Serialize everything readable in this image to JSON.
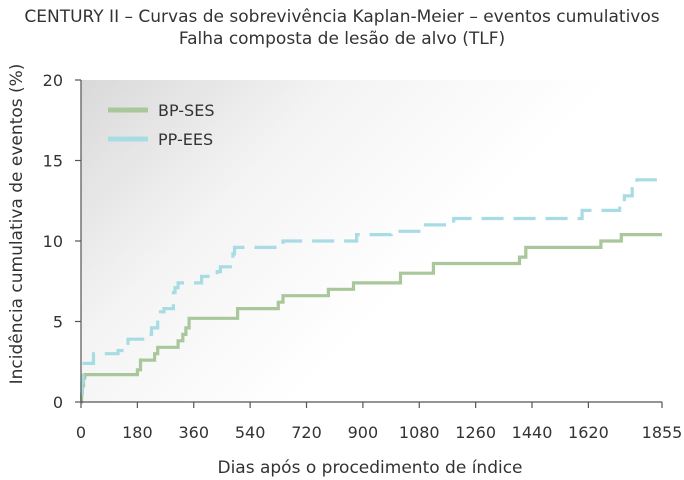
{
  "chart_data": {
    "type": "line",
    "title": "CENTURY II – Curvas de sobrevivência Kaplan-Meier – eventos cumulativos",
    "subtitle": "Falha composta de lesão de alvo (TLF)",
    "xlabel": "Dias após o procedimento de índice",
    "ylabel": "Incidência cumulativa de eventos (%)",
    "xlim": [
      0,
      1855
    ],
    "ylim": [
      0,
      20
    ],
    "x_ticks": [
      0,
      180,
      360,
      540,
      720,
      900,
      1080,
      1260,
      1440,
      1620,
      1855
    ],
    "y_ticks": [
      0,
      5,
      10,
      15,
      20
    ],
    "legend_position": "top-left",
    "grid": false,
    "series": [
      {
        "name": "BP-SES",
        "color": "#a9c79a",
        "style": "solid",
        "steps": [
          [
            0,
            0
          ],
          [
            2,
            0.5
          ],
          [
            4,
            1.0
          ],
          [
            8,
            1.5
          ],
          [
            12,
            1.7
          ],
          [
            180,
            2.0
          ],
          [
            190,
            2.6
          ],
          [
            235,
            3.0
          ],
          [
            245,
            3.4
          ],
          [
            310,
            3.8
          ],
          [
            325,
            4.2
          ],
          [
            335,
            4.6
          ],
          [
            345,
            5.2
          ],
          [
            500,
            5.8
          ],
          [
            630,
            6.2
          ],
          [
            645,
            6.6
          ],
          [
            790,
            7.0
          ],
          [
            870,
            7.4
          ],
          [
            1020,
            8.0
          ],
          [
            1125,
            8.6
          ],
          [
            1400,
            9.0
          ],
          [
            1420,
            9.6
          ],
          [
            1660,
            10.0
          ],
          [
            1725,
            10.4
          ],
          [
            1855,
            10.4
          ]
        ]
      },
      {
        "name": "PP-EES",
        "color": "#a8dce4",
        "style": "dashed",
        "steps": [
          [
            0,
            0.5
          ],
          [
            3,
            1.2
          ],
          [
            6,
            2.0
          ],
          [
            10,
            2.4
          ],
          [
            40,
            3.0
          ],
          [
            118,
            3.2
          ],
          [
            150,
            3.9
          ],
          [
            215,
            4.2
          ],
          [
            225,
            4.6
          ],
          [
            245,
            5.6
          ],
          [
            265,
            5.8
          ],
          [
            295,
            6.8
          ],
          [
            300,
            7.1
          ],
          [
            310,
            7.4
          ],
          [
            385,
            7.8
          ],
          [
            435,
            8.1
          ],
          [
            445,
            8.4
          ],
          [
            485,
            9.2
          ],
          [
            490,
            9.6
          ],
          [
            645,
            10.0
          ],
          [
            880,
            10.4
          ],
          [
            990,
            10.6
          ],
          [
            1100,
            11.0
          ],
          [
            1190,
            11.4
          ],
          [
            1600,
            11.9
          ],
          [
            1720,
            12.2
          ],
          [
            1735,
            12.8
          ],
          [
            1760,
            13.4
          ],
          [
            1775,
            13.8
          ],
          [
            1855,
            13.8
          ]
        ]
      }
    ]
  }
}
